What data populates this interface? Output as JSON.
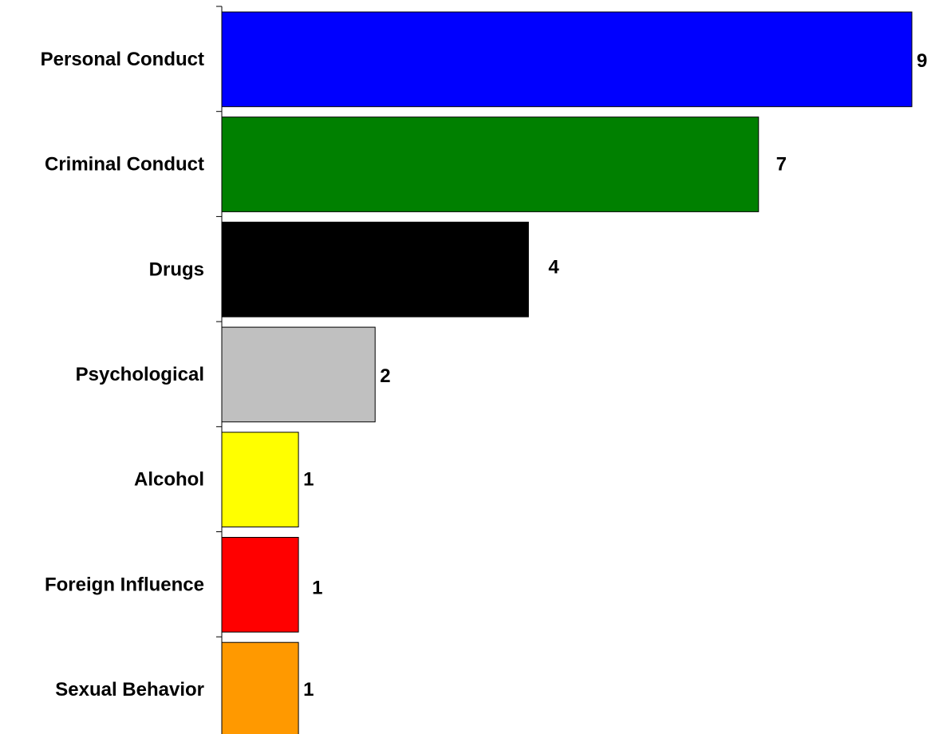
{
  "chart_data": {
    "type": "bar",
    "orientation": "horizontal",
    "title": "",
    "xlabel": "",
    "ylabel": "",
    "categories": [
      "Personal Conduct",
      "Criminal Conduct",
      "Drugs",
      "Psychological",
      "Alcohol",
      "Foreign Influence",
      "Sexual Behavior"
    ],
    "values": [
      9,
      7,
      4,
      2,
      1,
      1,
      1
    ],
    "value_labels": [
      "9",
      "7",
      "4",
      "2",
      "1",
      "1",
      "1"
    ],
    "colors": [
      "#0000FF",
      "#008000",
      "#000000",
      "#C0C0C0",
      "#FFFF00",
      "#FF0000",
      "#FF9900"
    ],
    "xlim": [
      0,
      9
    ],
    "grid": false,
    "legend": "none"
  }
}
